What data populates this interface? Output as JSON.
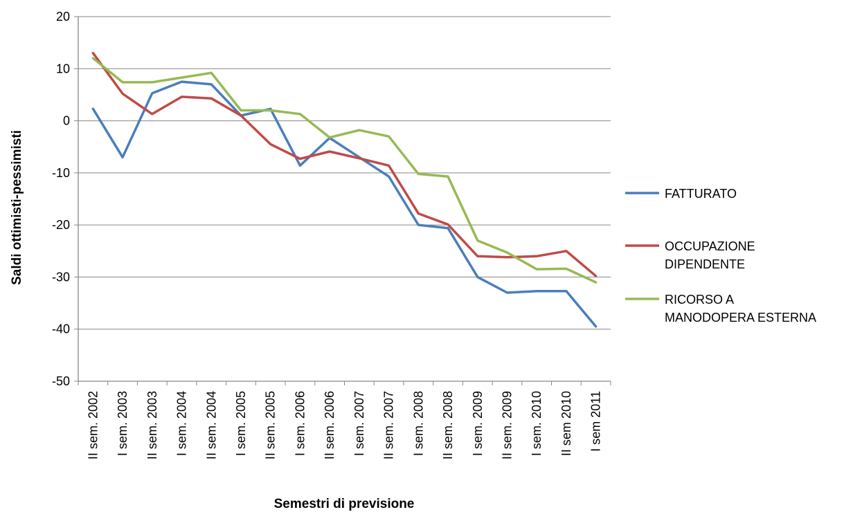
{
  "chart_data": {
    "type": "line",
    "title": "",
    "xlabel": "Semestri di previsione",
    "ylabel": "Saldi ottimisti-pessimisti",
    "ylim": [
      -50,
      20
    ],
    "yticks": [
      -50,
      -40,
      -30,
      -20,
      -10,
      0,
      10,
      20
    ],
    "grid": true,
    "legend_position": "right",
    "categories": [
      "II sem. 2002",
      "I sem. 2003",
      "II sem. 2003",
      "I sem. 2004",
      "II sem. 2004",
      "I sem. 2005",
      "II sem. 2005",
      "I sem. 2006",
      "II sem. 2006",
      "I sem. 2007",
      "II sem. 2007",
      "I sem. 2008",
      "II sem. 2008",
      "I sem. 2009",
      "II sem. 2009",
      "I sem. 2010",
      "II sem 2010",
      "I sem 2011"
    ],
    "series": [
      {
        "name": "FATTURATO",
        "name_lines": [
          "FATTURATO"
        ],
        "color": "#4a7ebb",
        "values": [
          2.3,
          -7,
          5.3,
          7.5,
          7,
          1,
          2.3,
          -8.6,
          -3.3,
          -7,
          -10.7,
          -20,
          -20.6,
          -30,
          -33,
          -32.7,
          -32.7,
          -39.5
        ]
      },
      {
        "name": "OCCUPAZIONE DIPENDENTE",
        "name_lines": [
          "OCCUPAZIONE",
          "DIPENDENTE"
        ],
        "color": "#be4b48",
        "values": [
          13,
          5.2,
          1.3,
          4.6,
          4.3,
          1,
          -4.5,
          -7.3,
          -5.9,
          -7.2,
          -8.6,
          -17.8,
          -19.9,
          -26,
          -26.2,
          -26,
          -25,
          -29.8
        ]
      },
      {
        "name": "RICORSO A MANODOPERA ESTERNA",
        "name_lines": [
          "RICORSO A",
          "MANODOPERA ESTERNA"
        ],
        "color": "#98b954",
        "values": [
          12,
          7.4,
          7.4,
          8.3,
          9.2,
          2,
          2,
          1.3,
          -3.2,
          -1.8,
          -3,
          -10.2,
          -10.7,
          -23,
          -25.3,
          -28.5,
          -28.4,
          -31
        ]
      }
    ]
  }
}
